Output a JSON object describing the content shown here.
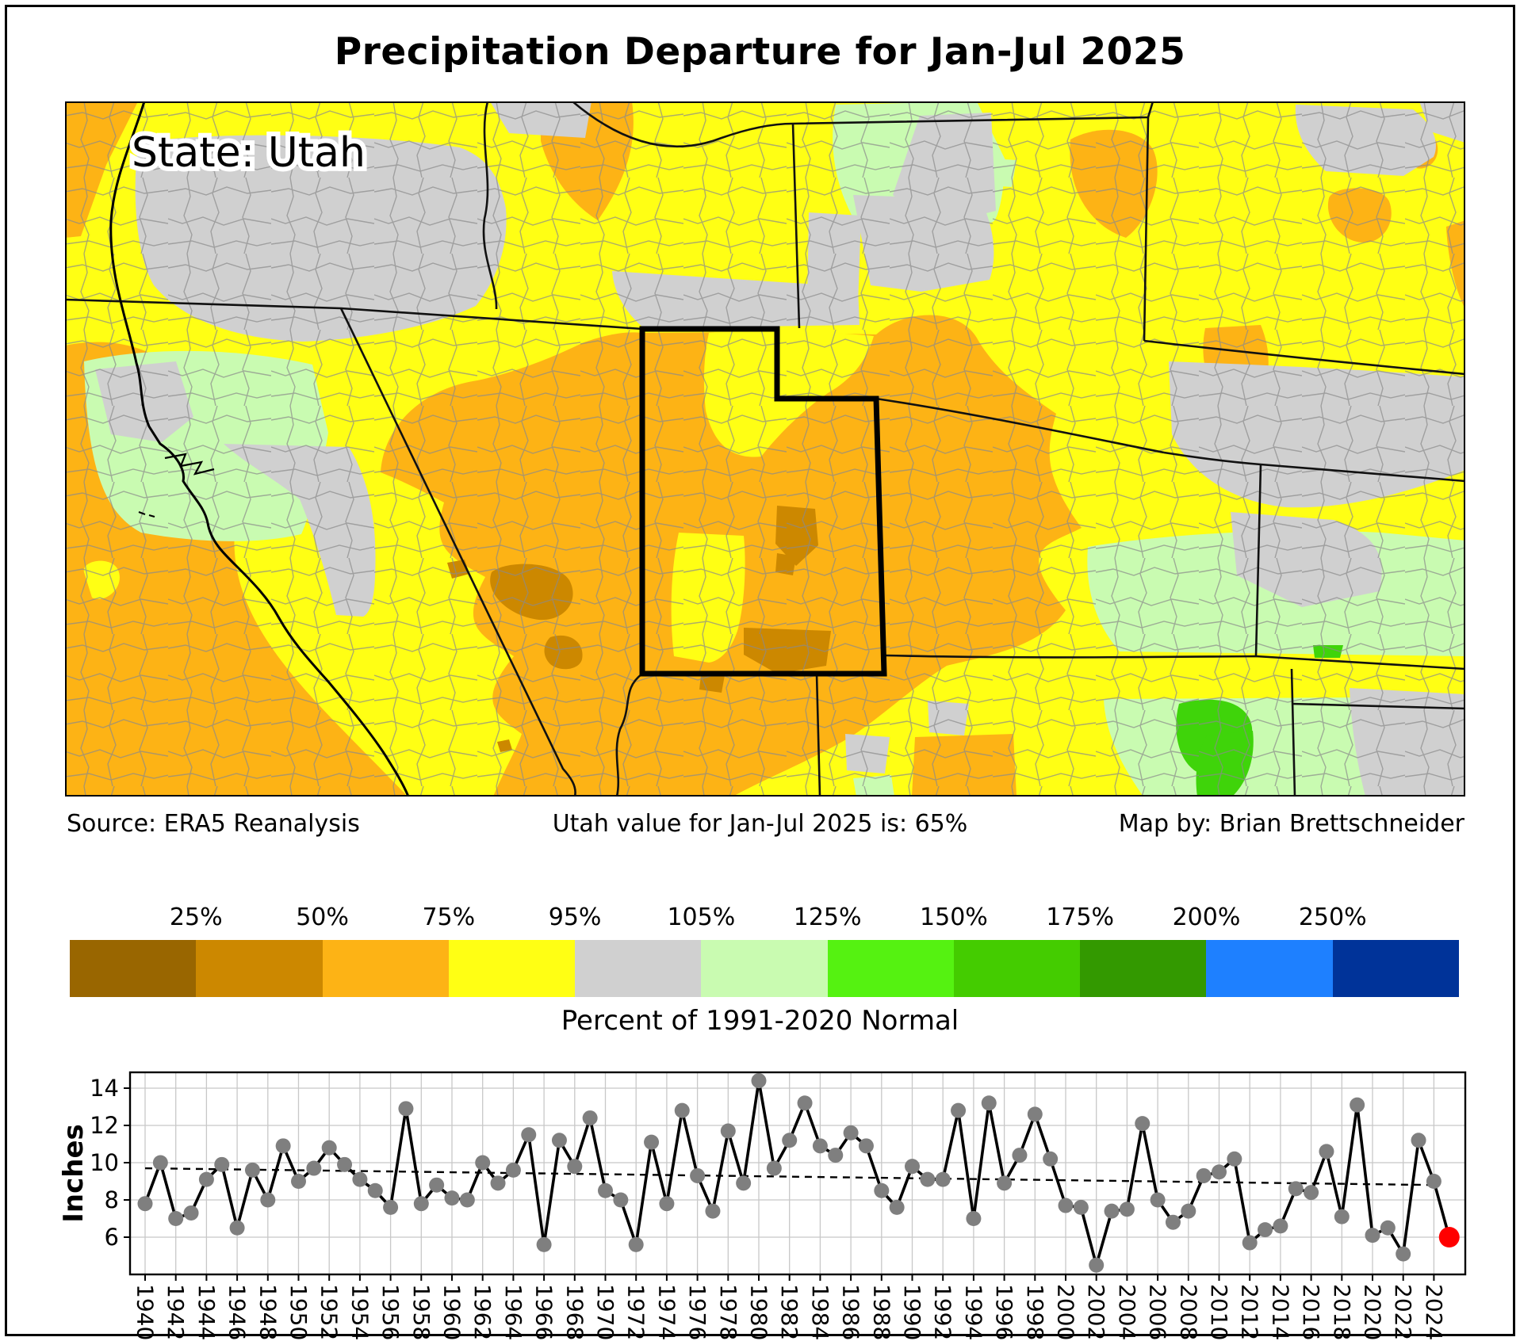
{
  "title": "Precipitation Departure for Jan-Jul 2025",
  "map": {
    "state_label": "State: Utah",
    "source": "Source: ERA5 Reanalysis",
    "value_text": "Utah value for Jan-Jul 2025 is: 65%",
    "credit": "Map by: Brian Brettschneider"
  },
  "legend": {
    "title": "Percent of 1991-2020 Normal",
    "tick_labels": [
      "25%",
      "50%",
      "75%",
      "95%",
      "105%",
      "125%",
      "150%",
      "175%",
      "200%",
      "250%"
    ],
    "colors": [
      "#996600",
      "#CC8800",
      "#FDB315",
      "#FFFF14",
      "#D0D0D0",
      "#C9FBB1",
      "#55F211",
      "#44CC00",
      "#339900",
      "#1E80FF",
      "#003399"
    ]
  },
  "chart_data": {
    "type": "line",
    "title": "",
    "xlabel": "",
    "ylabel": "Inches",
    "years_start": 1940,
    "years": [
      1940,
      1941,
      1942,
      1943,
      1944,
      1945,
      1946,
      1947,
      1948,
      1949,
      1950,
      1951,
      1952,
      1953,
      1954,
      1955,
      1956,
      1957,
      1958,
      1959,
      1960,
      1961,
      1962,
      1963,
      1964,
      1965,
      1966,
      1967,
      1968,
      1969,
      1970,
      1971,
      1972,
      1973,
      1974,
      1975,
      1976,
      1977,
      1978,
      1979,
      1980,
      1981,
      1982,
      1983,
      1984,
      1985,
      1986,
      1987,
      1988,
      1989,
      1990,
      1991,
      1992,
      1993,
      1994,
      1995,
      1996,
      1997,
      1998,
      1999,
      2000,
      2001,
      2002,
      2003,
      2004,
      2005,
      2006,
      2007,
      2008,
      2009,
      2010,
      2011,
      2012,
      2013,
      2014,
      2015,
      2016,
      2017,
      2018,
      2019,
      2020,
      2021,
      2022,
      2023,
      2024
    ],
    "values": [
      7.8,
      10.0,
      7.0,
      7.3,
      9.1,
      9.9,
      6.5,
      9.6,
      8.0,
      10.9,
      9.0,
      9.7,
      10.8,
      9.9,
      9.1,
      8.5,
      7.6,
      12.9,
      7.8,
      8.8,
      8.1,
      8.0,
      10.0,
      8.9,
      9.6,
      11.5,
      5.6,
      11.2,
      9.8,
      12.4,
      8.5,
      8.0,
      5.6,
      11.1,
      7.8,
      12.8,
      9.3,
      7.4,
      11.7,
      8.9,
      14.4,
      9.7,
      11.2,
      13.2,
      10.9,
      10.4,
      11.6,
      10.9,
      8.5,
      7.6,
      9.8,
      9.1,
      9.1,
      12.8,
      7.0,
      13.2,
      8.9,
      10.4,
      12.6,
      10.2,
      7.7,
      7.6,
      4.5,
      7.4,
      7.5,
      12.1,
      8.0,
      6.8,
      7.4,
      9.3,
      9.5,
      10.2,
      5.7,
      6.4,
      6.6,
      8.6,
      8.4,
      10.6,
      7.1,
      13.1,
      6.1,
      6.5,
      5.1,
      11.2,
      9.0
    ],
    "highlight": {
      "year": 2025,
      "value": 6.0,
      "color": "#FF0000"
    },
    "trend": {
      "start_year": 1940,
      "start_value": 9.7,
      "end_year": 2024,
      "end_value": 8.8,
      "style": "dashed"
    },
    "yticks": [
      6,
      8,
      10,
      12,
      14
    ],
    "ylim": [
      4.0,
      14.85
    ],
    "xtick_step": 2,
    "grid": true,
    "point_color": "#7F7F7F",
    "line_color": "#000000"
  }
}
